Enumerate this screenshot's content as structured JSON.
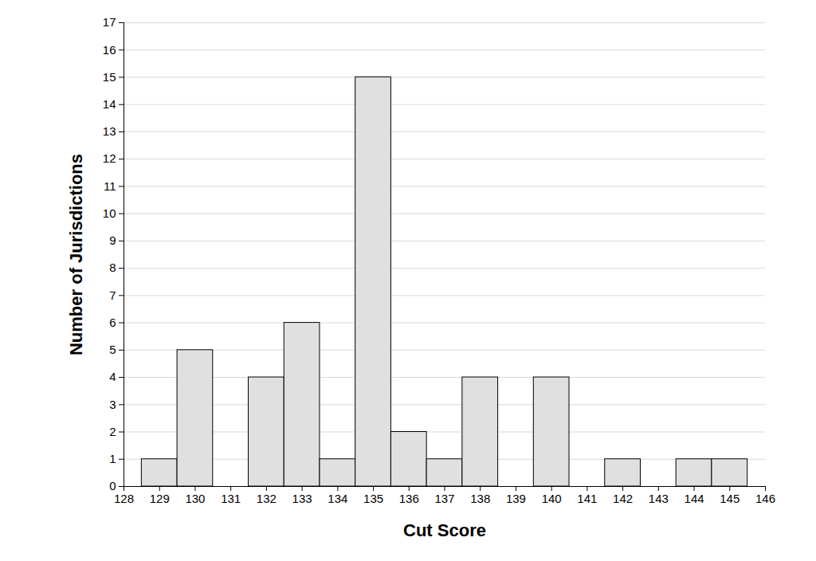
{
  "chart_data": {
    "type": "histogram",
    "xlabel": "Cut Score",
    "ylabel": "Number of Jurisdictions",
    "bins": [
      128.5,
      129.5,
      130.5,
      131.5,
      132.5,
      133.5,
      134.5,
      135.5,
      136.5,
      137.5,
      138.5,
      139.5,
      140.5,
      141.5,
      142.5,
      143.5,
      144.5,
      145.5
    ],
    "values": [
      1,
      5,
      0,
      4,
      6,
      1,
      15,
      2,
      1,
      4,
      0,
      4,
      0,
      1,
      0,
      1,
      1
    ],
    "color": "#e0e0e0",
    "xlim": [
      128,
      146
    ],
    "xticks": [
      128,
      129,
      130,
      131,
      132,
      133,
      134,
      135,
      136,
      137,
      138,
      139,
      140,
      141,
      142,
      143,
      144,
      145,
      146
    ],
    "ylim": [
      0,
      17
    ],
    "yticks": [
      0,
      1,
      2,
      3,
      4,
      5,
      6,
      7,
      8,
      9,
      10,
      11,
      12,
      13,
      14,
      15,
      16,
      17
    ],
    "grid": true
  }
}
